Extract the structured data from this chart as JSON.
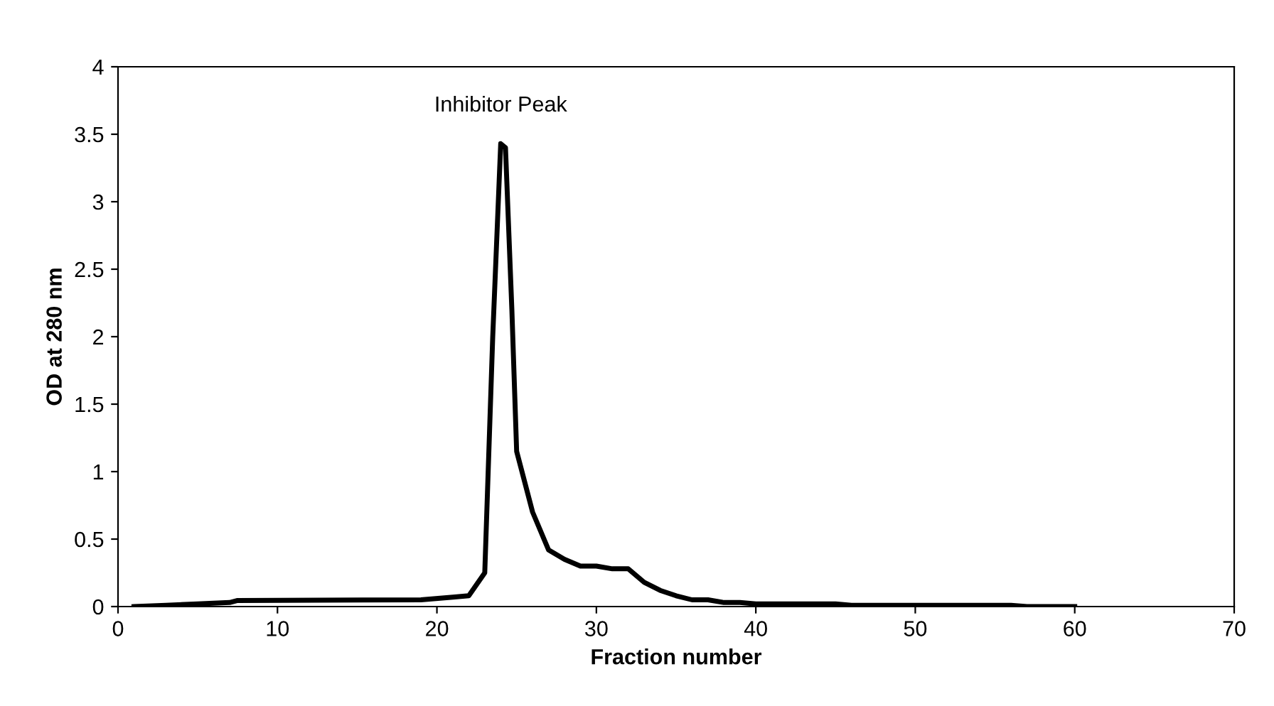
{
  "chart_data": {
    "type": "line",
    "xlabel": "Fraction number",
    "ylabel": "OD at 280 nm",
    "x": [
      1,
      3,
      5,
      7,
      7.5,
      19,
      21,
      22,
      23,
      23.5,
      24,
      24.3,
      24.7,
      25,
      26,
      27,
      28,
      29,
      30,
      31,
      32,
      33,
      34,
      35,
      36,
      37,
      38,
      39,
      40,
      45,
      46,
      56,
      57,
      60
    ],
    "series": [
      {
        "color": "#000000",
        "values": [
          0,
          0.01,
          0.02,
          0.03,
          0.045,
          0.05,
          0.07,
          0.08,
          0.25,
          2.0,
          3.43,
          3.4,
          2.2,
          1.15,
          0.7,
          0.42,
          0.35,
          0.3,
          0.3,
          0.28,
          0.28,
          0.18,
          0.12,
          0.08,
          0.05,
          0.05,
          0.03,
          0.03,
          0.02,
          0.02,
          0.01,
          0.01,
          0,
          0
        ]
      }
    ],
    "xlim": [
      0,
      70
    ],
    "xticks": [
      0,
      10,
      20,
      30,
      40,
      50,
      60,
      70
    ],
    "ylim": [
      0,
      4
    ],
    "yticks": [
      0,
      0.5,
      1,
      1.5,
      2,
      2.5,
      3,
      3.5,
      4
    ],
    "grid": false,
    "marker": "none",
    "line_style": "solid",
    "annotations": [
      {
        "text": "Inhibitor Peak",
        "x": 24,
        "y": 3.43
      }
    ]
  }
}
